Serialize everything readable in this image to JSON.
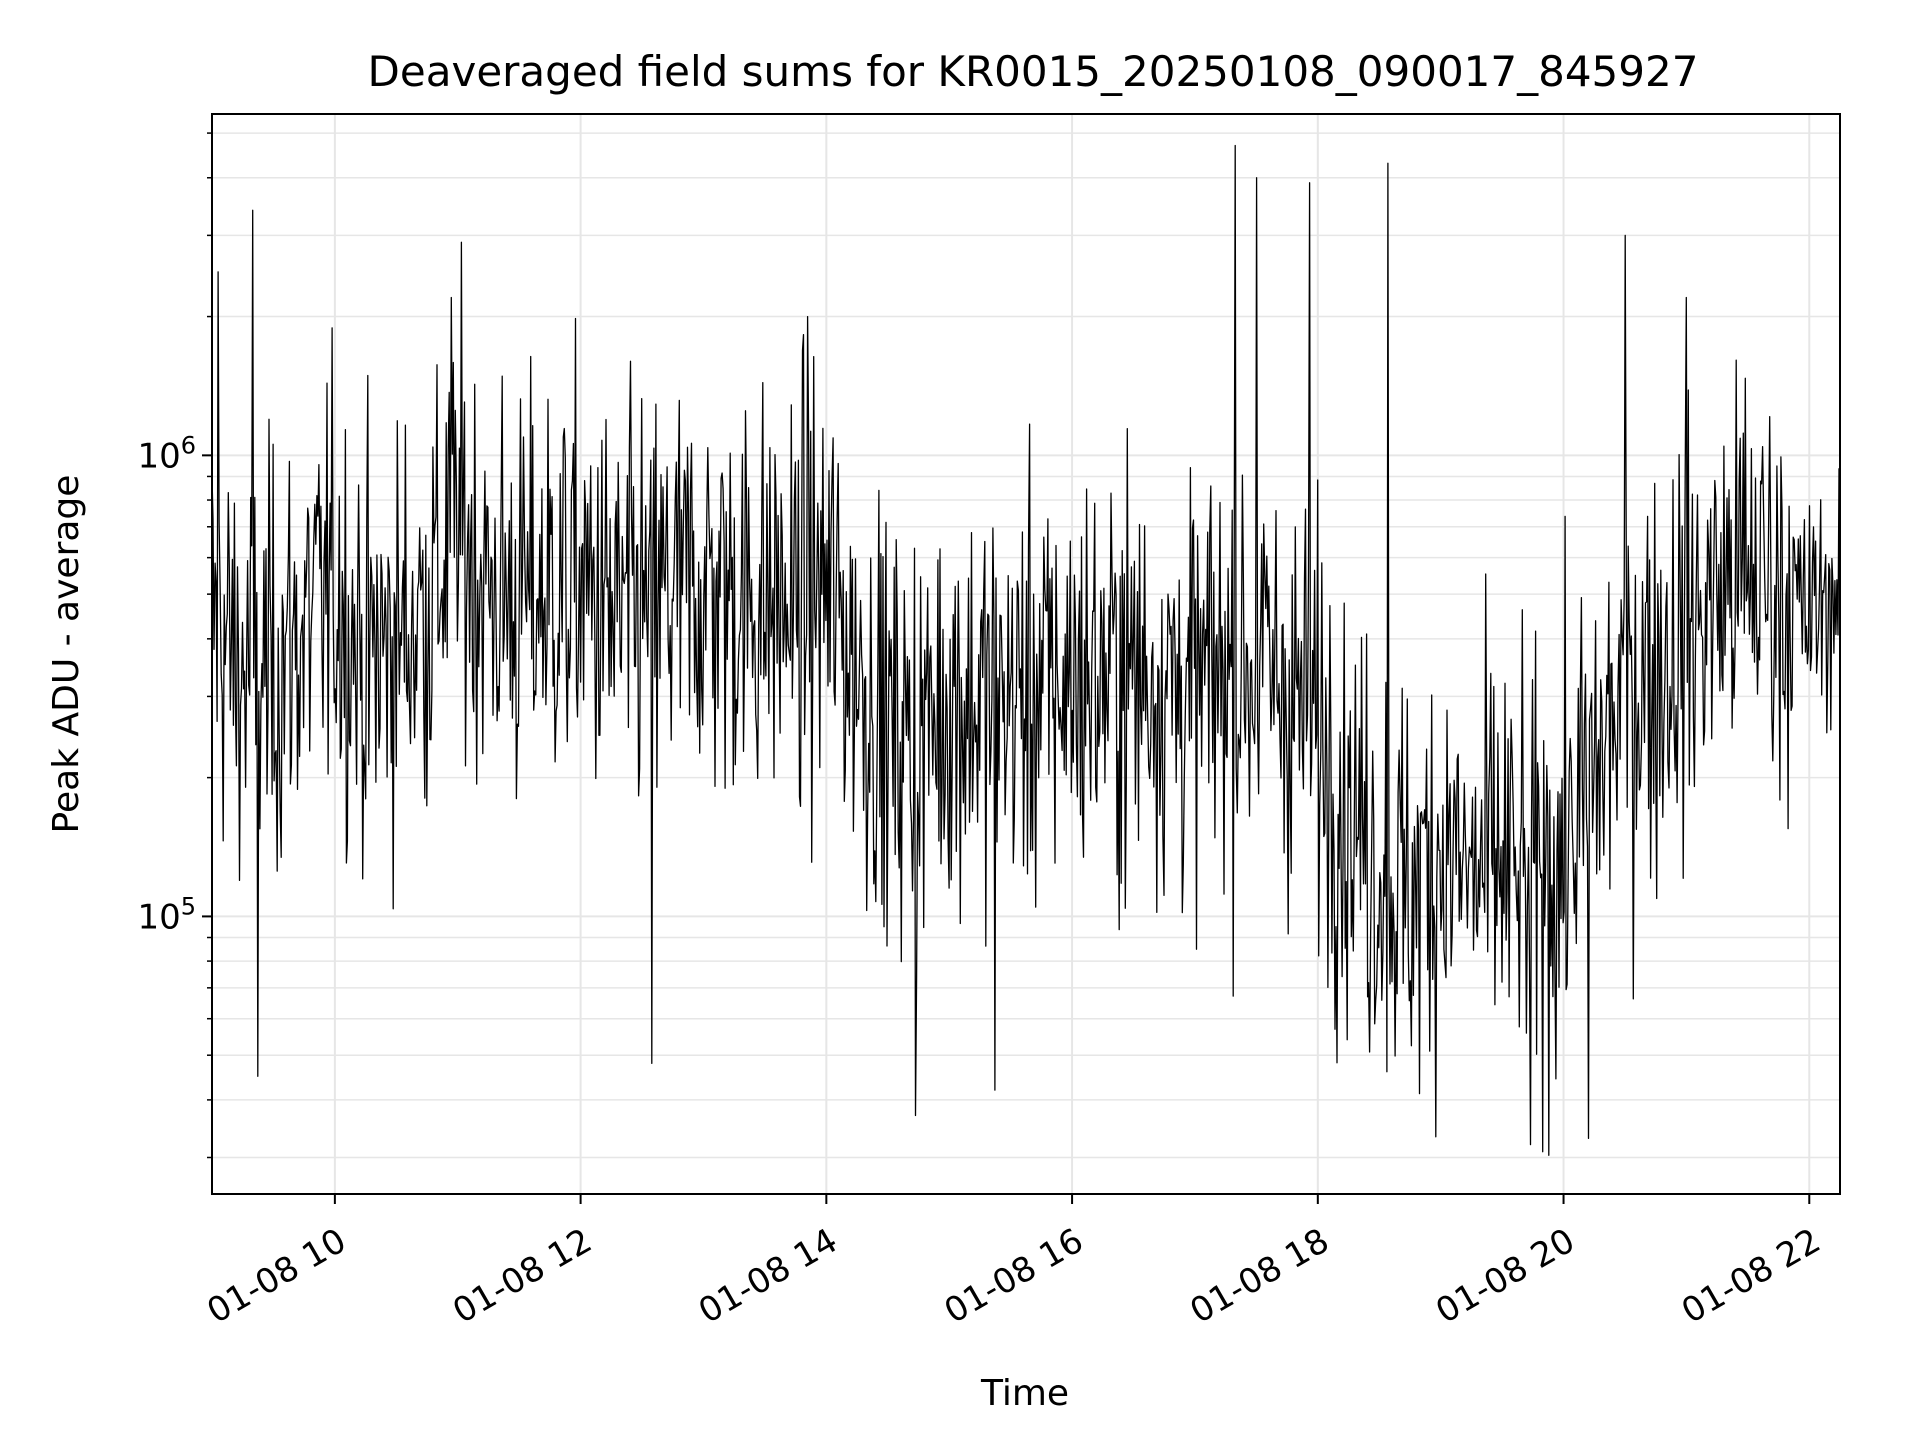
{
  "chart_data": {
    "type": "line",
    "title": "Deaveraged field sums for KR0015_20250108_090017_845927",
    "xlabel": "Time",
    "ylabel": "Peak ADU - average",
    "x_tick_labels": [
      "01-08 10",
      "01-08 12",
      "01-08 14",
      "01-08 16",
      "01-08 18",
      "01-08 20",
      "01-08 22"
    ],
    "x_ticks_hours": [
      10,
      12,
      14,
      16,
      18,
      20,
      22
    ],
    "xlim_hours": [
      9.0,
      22.25
    ],
    "y_scale": "log",
    "ylim": [
      25000,
      5500000
    ],
    "y_major_ticks": [
      {
        "value": 100000,
        "base": "10",
        "exp": "5"
      },
      {
        "value": 1000000,
        "base": "10",
        "exp": "6"
      }
    ],
    "grid": true,
    "line_color": "#000000",
    "series": [
      {
        "x_hours": [
          9.0,
          9.25,
          9.5,
          9.75,
          10.0,
          10.25,
          10.5,
          10.75,
          11.0,
          11.25,
          11.5,
          11.75,
          12.0,
          12.25,
          12.5,
          12.75,
          13.0,
          13.25,
          13.5,
          13.75,
          14.0,
          14.25,
          14.5,
          14.75,
          15.0,
          15.25,
          15.5,
          15.75,
          16.0,
          16.25,
          16.5,
          16.75,
          17.0,
          17.25,
          17.5,
          17.75,
          18.0,
          18.25,
          18.5,
          18.75,
          19.0,
          19.25,
          19.5,
          19.75,
          20.0,
          20.25,
          20.5,
          20.75,
          21.0,
          21.25,
          21.5,
          21.75,
          22.0,
          22.25
        ],
        "values": [
          450000,
          330000,
          340000,
          420000,
          520000,
          350000,
          400000,
          470000,
          720000,
          500000,
          480000,
          510000,
          520000,
          440000,
          460000,
          500000,
          520000,
          500000,
          480000,
          470000,
          520000,
          350000,
          250000,
          240000,
          300000,
          290000,
          300000,
          310000,
          330000,
          330000,
          340000,
          330000,
          300000,
          350000,
          350000,
          310000,
          260000,
          170000,
          130000,
          110000,
          140000,
          120000,
          130000,
          110000,
          140000,
          200000,
          310000,
          350000,
          400000,
          500000,
          560000,
          520000,
          440000,
          520000
        ],
        "spikes_up": [
          {
            "x_hours": 9.05,
            "value": 2500000
          },
          {
            "x_hours": 9.33,
            "value": 3400000
          },
          {
            "x_hours": 10.95,
            "value": 2200000
          },
          {
            "x_hours": 13.85,
            "value": 2000000
          },
          {
            "x_hours": 17.33,
            "value": 4700000
          },
          {
            "x_hours": 17.5,
            "value": 4000000
          },
          {
            "x_hours": 17.93,
            "value": 3900000
          },
          {
            "x_hours": 18.57,
            "value": 4300000
          },
          {
            "x_hours": 20.5,
            "value": 3000000
          },
          {
            "x_hours": 21.0,
            "value": 2200000
          }
        ],
        "spikes_down": [
          {
            "x_hours": 9.37,
            "value": 45000
          },
          {
            "x_hours": 12.58,
            "value": 48000
          },
          {
            "x_hours": 14.73,
            "value": 37000
          },
          {
            "x_hours": 15.37,
            "value": 42000
          },
          {
            "x_hours": 19.73,
            "value": 32000
          },
          {
            "x_hours": 20.2,
            "value": 33000
          }
        ]
      }
    ]
  }
}
